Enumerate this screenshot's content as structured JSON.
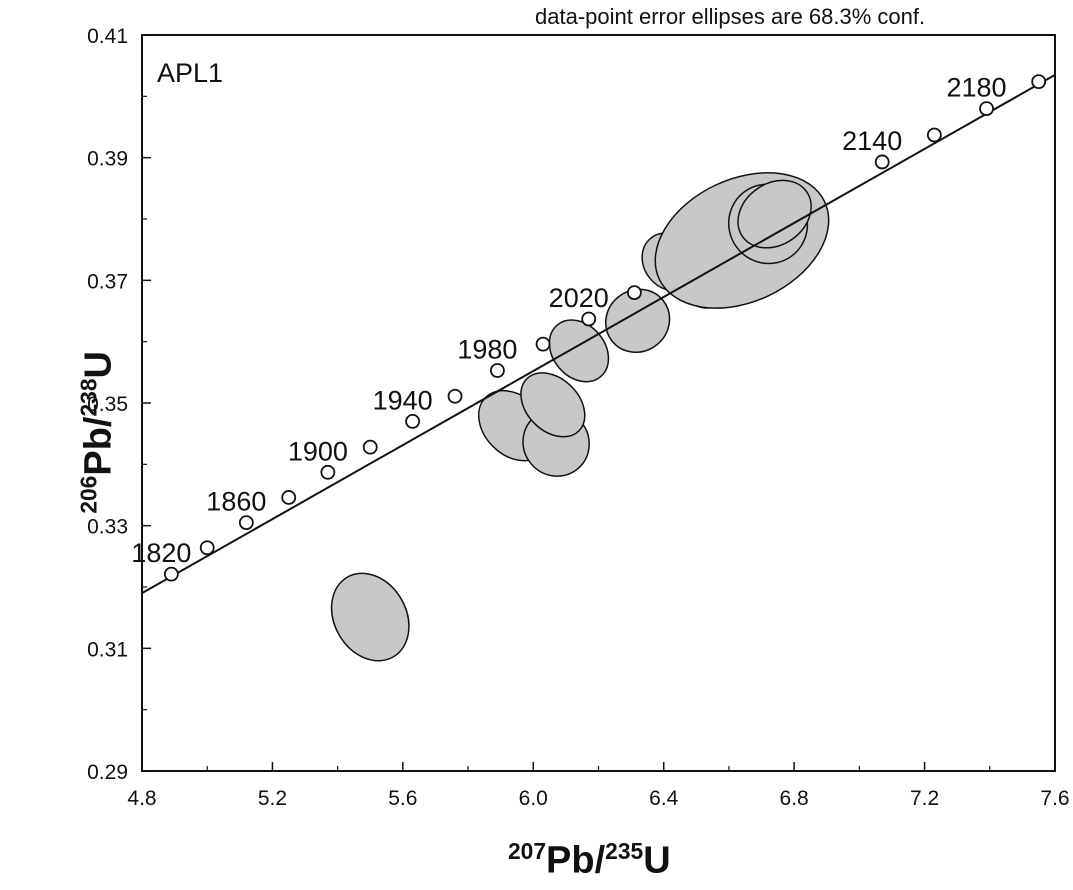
{
  "chart_data": {
    "type": "scatter",
    "title": "",
    "panel_label": "APL1",
    "note": "data-point error ellipses are 68.3% conf.",
    "xlabel": {
      "num_iso": "207",
      "num_el": "Pb",
      "den_iso": "235",
      "den_el": "U"
    },
    "ylabel": {
      "num_iso": "206",
      "num_el": "Pb",
      "den_iso": "238",
      "den_el": "U"
    },
    "xlim": [
      4.8,
      7.6
    ],
    "ylim": [
      0.29,
      0.41
    ],
    "x_ticks": [
      "4.8",
      "5.2",
      "5.6",
      "6.0",
      "6.4",
      "6.8",
      "7.2",
      "7.6"
    ],
    "y_ticks": [
      "0.29",
      "0.31",
      "0.33",
      "0.35",
      "0.37",
      "0.39",
      "0.41"
    ],
    "concordia_points": [
      {
        "x": 4.89,
        "y": 0.3221
      },
      {
        "x": 5.0,
        "y": 0.3264
      },
      {
        "x": 5.12,
        "y": 0.3305
      },
      {
        "x": 5.25,
        "y": 0.3346
      },
      {
        "x": 5.37,
        "y": 0.3387
      },
      {
        "x": 5.5,
        "y": 0.3428
      },
      {
        "x": 5.63,
        "y": 0.347
      },
      {
        "x": 5.76,
        "y": 0.3511
      },
      {
        "x": 5.89,
        "y": 0.3553
      },
      {
        "x": 6.03,
        "y": 0.3596
      },
      {
        "x": 6.17,
        "y": 0.3637
      },
      {
        "x": 6.31,
        "y": 0.368
      },
      {
        "x": 7.07,
        "y": 0.3893
      },
      {
        "x": 7.23,
        "y": 0.3937
      },
      {
        "x": 7.39,
        "y": 0.398
      },
      {
        "x": 7.55,
        "y": 0.4024
      }
    ],
    "age_labels": [
      {
        "text": "1820",
        "x": 4.89,
        "y": 0.3221
      },
      {
        "text": "1860",
        "x": 5.12,
        "y": 0.3305
      },
      {
        "text": "1900",
        "x": 5.37,
        "y": 0.3387
      },
      {
        "text": "1940",
        "x": 5.63,
        "y": 0.347
      },
      {
        "text": "1980",
        "x": 5.89,
        "y": 0.3553
      },
      {
        "text": "2020",
        "x": 6.17,
        "y": 0.3637
      },
      {
        "text": "2140",
        "x": 7.07,
        "y": 0.3893
      },
      {
        "text": "2180",
        "x": 7.39,
        "y": 0.398
      }
    ],
    "concordia_line": [
      [
        4.8,
        0.319
      ],
      [
        7.6,
        0.4035
      ]
    ],
    "ellipses": [
      {
        "cx": 5.5,
        "cy": 0.3151,
        "rx": 0.11,
        "ry": 0.0075,
        "angle_deg": 30
      },
      {
        "cx": 5.94,
        "cy": 0.3463,
        "rx": 0.09,
        "ry": 0.0065,
        "angle_deg": 45
      },
      {
        "cx": 6.07,
        "cy": 0.3435,
        "rx": 0.1,
        "ry": 0.0055,
        "angle_deg": 40
      },
      {
        "cx": 6.06,
        "cy": 0.3497,
        "rx": 0.08,
        "ry": 0.006,
        "angle_deg": 45
      },
      {
        "cx": 6.14,
        "cy": 0.3585,
        "rx": 0.08,
        "ry": 0.0055,
        "angle_deg": 40
      },
      {
        "cx": 6.32,
        "cy": 0.3634,
        "rx": 0.1,
        "ry": 0.005,
        "angle_deg": 38
      },
      {
        "cx": 6.42,
        "cy": 0.373,
        "rx": 0.08,
        "ry": 0.005,
        "angle_deg": 40
      },
      {
        "cx": 6.52,
        "cy": 0.3702,
        "rx": 0.08,
        "ry": 0.005,
        "angle_deg": 40
      },
      {
        "cx": 6.64,
        "cy": 0.3765,
        "rx": 0.28,
        "ry": 0.01,
        "angle_deg": 25
      },
      {
        "cx": 6.72,
        "cy": 0.3792,
        "rx": 0.12,
        "ry": 0.0065,
        "angle_deg": 35
      },
      {
        "cx": 6.74,
        "cy": 0.3808,
        "rx": 0.12,
        "ry": 0.005,
        "angle_deg": 35
      }
    ],
    "colors": {
      "ellipse_fill": "#c8c8c8",
      "stroke": "#111111"
    }
  }
}
